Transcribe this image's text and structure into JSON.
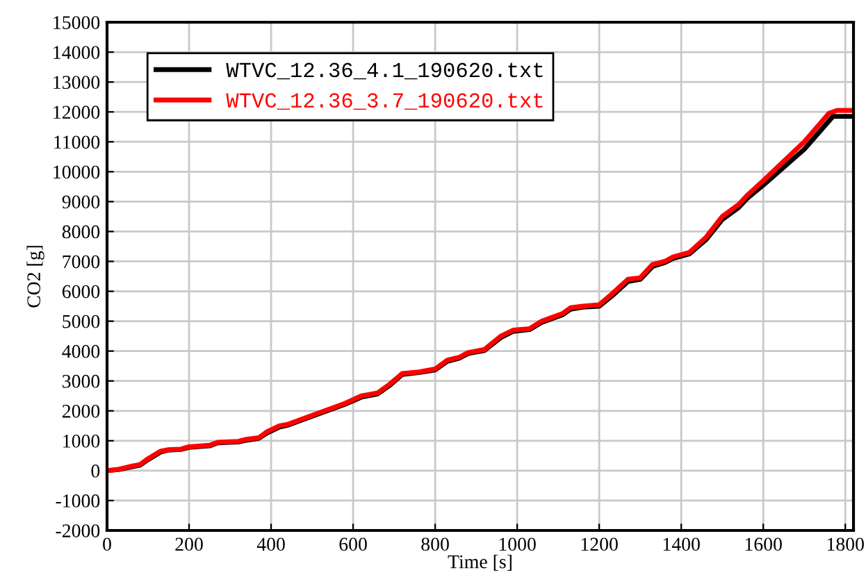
{
  "chart_data": {
    "type": "line",
    "xlabel": "Time [s]",
    "ylabel": "CO2 [g]",
    "xlim": [
      0,
      1820
    ],
    "ylim": [
      -2000,
      15000
    ],
    "xticks": [
      0,
      200,
      400,
      600,
      800,
      1000,
      1200,
      1400,
      1600,
      1800
    ],
    "yticks": [
      -2000,
      -1000,
      0,
      1000,
      2000,
      3000,
      4000,
      5000,
      6000,
      7000,
      8000,
      9000,
      10000,
      11000,
      12000,
      13000,
      14000,
      15000
    ],
    "grid": true,
    "legend": "top left",
    "line_style": "solid",
    "marker": "none",
    "series": [
      {
        "name": "WTVC_12.36_4.1_190620.txt",
        "color": "#000000",
        "x": [
          0,
          30,
          60,
          80,
          100,
          130,
          150,
          180,
          200,
          250,
          270,
          320,
          340,
          370,
          390,
          420,
          440,
          470,
          500,
          530,
          550,
          580,
          620,
          660,
          690,
          720,
          760,
          800,
          830,
          860,
          880,
          920,
          960,
          990,
          1030,
          1060,
          1090,
          1110,
          1130,
          1160,
          1200,
          1230,
          1270,
          1300,
          1330,
          1360,
          1380,
          1420,
          1460,
          1500,
          1540,
          1560,
          1600,
          1700,
          1770,
          1815
        ],
        "values": [
          0,
          40,
          130,
          180,
          370,
          620,
          690,
          710,
          780,
          830,
          930,
          960,
          1020,
          1080,
          1260,
          1460,
          1520,
          1670,
          1820,
          1970,
          2070,
          2220,
          2460,
          2570,
          2860,
          3220,
          3280,
          3370,
          3660,
          3770,
          3920,
          4020,
          4450,
          4660,
          4720,
          4960,
          5110,
          5210,
          5400,
          5470,
          5500,
          5830,
          6330,
          6400,
          6830,
          6960,
          7100,
          7250,
          7720,
          8400,
          8800,
          9100,
          9550,
          10750,
          11850,
          11850
        ]
      },
      {
        "name": "WTVC_12.36_3.7_190620.txt",
        "color": "#ff0000",
        "x": [
          0,
          30,
          60,
          80,
          100,
          130,
          150,
          180,
          200,
          250,
          270,
          320,
          340,
          370,
          390,
          420,
          440,
          470,
          500,
          530,
          550,
          580,
          620,
          660,
          690,
          720,
          760,
          800,
          830,
          860,
          880,
          920,
          960,
          990,
          1030,
          1060,
          1090,
          1110,
          1130,
          1160,
          1200,
          1230,
          1270,
          1300,
          1330,
          1360,
          1380,
          1420,
          1460,
          1500,
          1540,
          1560,
          1600,
          1700,
          1760,
          1780,
          1815
        ],
        "values": [
          0,
          50,
          150,
          200,
          400,
          650,
          700,
          720,
          800,
          850,
          950,
          980,
          1050,
          1100,
          1300,
          1500,
          1550,
          1700,
          1850,
          2000,
          2100,
          2250,
          2500,
          2600,
          2900,
          3250,
          3300,
          3400,
          3700,
          3800,
          3950,
          4050,
          4500,
          4700,
          4750,
          5000,
          5150,
          5250,
          5450,
          5500,
          5550,
          5900,
          6400,
          6450,
          6900,
          7000,
          7150,
          7300,
          7800,
          8500,
          8900,
          9200,
          9700,
          11000,
          11950,
          12050,
          12050
        ]
      }
    ]
  }
}
